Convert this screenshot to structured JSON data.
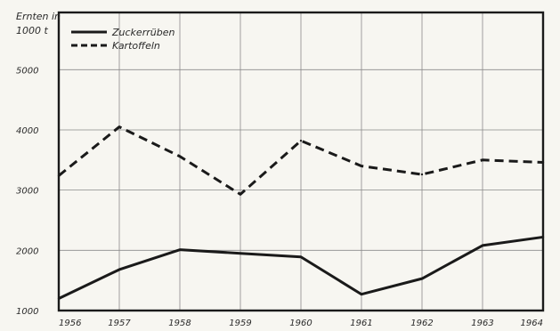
{
  "chart_data": {
    "type": "line",
    "title": "",
    "xlabel": "",
    "ylabel": "Ernten in 1000 t",
    "ylabel_lines": [
      "Ernten in",
      "1000 t"
    ],
    "x": [
      "1956",
      "1957",
      "1958",
      "1959",
      "1960",
      "1961",
      "1962",
      "1963",
      "1964"
    ],
    "xlim": [
      1956,
      1964
    ],
    "ylim": [
      1000,
      5950
    ],
    "yticks": [
      "1000",
      "2000",
      "3000",
      "4000",
      "5000"
    ],
    "grid": true,
    "legend": "top-left",
    "series": [
      {
        "name": "Zuckerrüben",
        "style": "solid",
        "color": "#1a1a1a",
        "values": [
          1200,
          1680,
          2010,
          1950,
          1890,
          1270,
          1530,
          2080,
          2220
        ]
      },
      {
        "name": "Kartoffeln",
        "style": "dashed",
        "color": "#1a1a1a",
        "values": [
          3240,
          4050,
          3560,
          2930,
          3820,
          3400,
          3260,
          3500,
          3460
        ]
      }
    ]
  }
}
